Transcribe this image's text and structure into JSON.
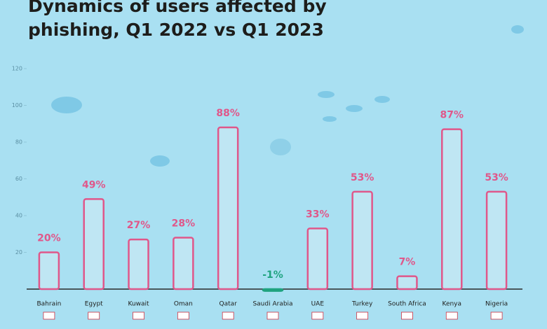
{
  "chart_data": {
    "type": "bar",
    "title": "Dynamics of users affected by phishing, Q1 2022 vs Q1 2023",
    "categories": [
      "Bahrain",
      "Egypt",
      "Kuwait",
      "Oman",
      "Qatar",
      "Saudi Arabia",
      "UAE",
      "Turkey",
      "South Africa",
      "Kenya",
      "Nigeria"
    ],
    "values": [
      20,
      49,
      27,
      28,
      88,
      -1,
      33,
      53,
      7,
      87,
      53
    ],
    "value_labels": [
      "20%",
      "49%",
      "27%",
      "28%",
      "88%",
      "-1%",
      "33%",
      "53%",
      "7%",
      "87%",
      "53%"
    ],
    "color": "#e0578a",
    "negative_color": "#1fa37f",
    "ylim": [
      0,
      120
    ],
    "yticks": [
      20,
      40,
      60,
      80,
      100,
      120
    ]
  }
}
